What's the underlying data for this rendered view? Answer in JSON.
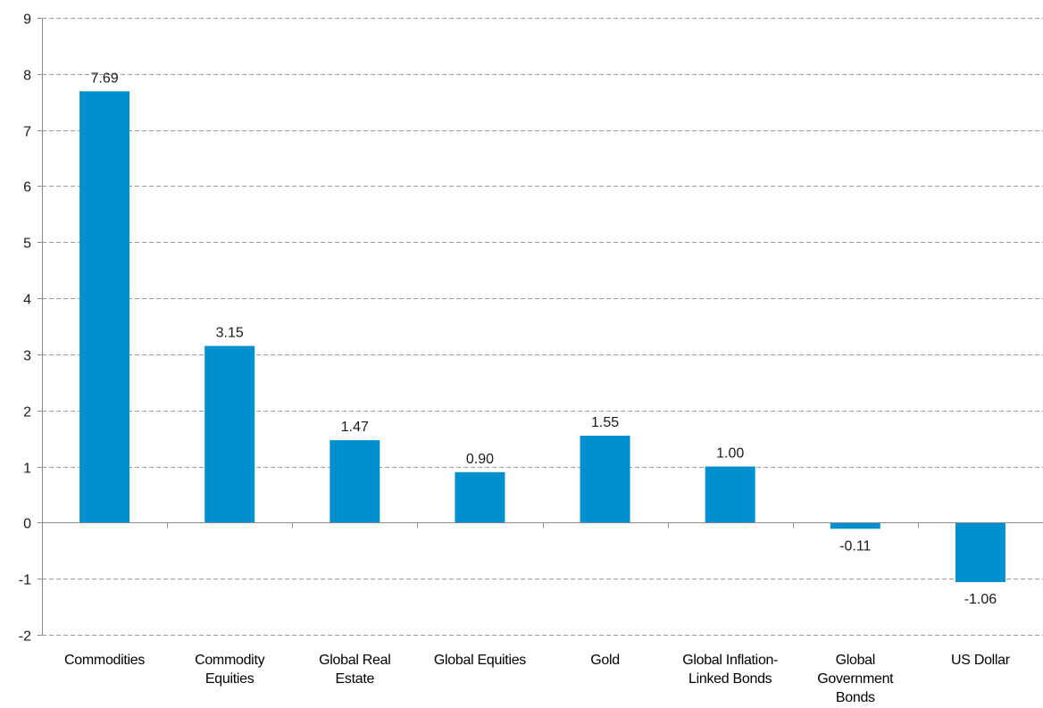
{
  "chart_data": {
    "type": "bar",
    "title": "",
    "xlabel": "",
    "ylabel": "",
    "categories": [
      "Commodities",
      "Commodity Equities",
      "Global Real Estate",
      "Global Equities",
      "Gold",
      "Global Inflation-Linked Bonds",
      "Global Government Bonds",
      "US Dollar"
    ],
    "category_lines": [
      [
        "Commodities"
      ],
      [
        "Commodity",
        "Equities"
      ],
      [
        "Global Real",
        "Estate"
      ],
      [
        "Global Equities"
      ],
      [
        "Gold"
      ],
      [
        "Global Inflation-",
        "Linked Bonds"
      ],
      [
        "Global",
        "Government",
        "Bonds"
      ],
      [
        "US Dollar"
      ]
    ],
    "values": [
      7.69,
      3.15,
      1.47,
      0.9,
      1.55,
      1.0,
      -0.11,
      -1.06
    ],
    "data_labels": [
      "7.69",
      "3.15",
      "1.47",
      "0.90",
      "1.55",
      "1.00",
      "-0.11",
      "-1.06"
    ],
    "ylim": [
      -2,
      9
    ],
    "yticks": [
      -2,
      -1,
      0,
      1,
      2,
      3,
      4,
      5,
      6,
      7,
      8,
      9
    ],
    "grid": true,
    "grid_style": "dashed",
    "legend": "none",
    "bar_color": "#0090d0"
  }
}
